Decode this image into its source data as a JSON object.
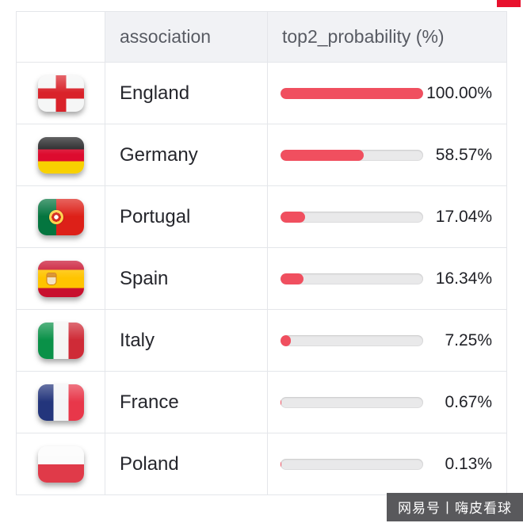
{
  "table": {
    "headers": {
      "flag": "",
      "association": "association",
      "probability": "top2_probability (%)"
    },
    "rows": [
      {
        "flag": "england-flag",
        "name": "England",
        "value": 100.0,
        "label": "100.00%"
      },
      {
        "flag": "germany-flag",
        "name": "Germany",
        "value": 58.57,
        "label": "58.57%"
      },
      {
        "flag": "portugal-flag",
        "name": "Portugal",
        "value": 17.04,
        "label": "17.04%"
      },
      {
        "flag": "spain-flag",
        "name": "Spain",
        "value": 16.34,
        "label": "16.34%"
      },
      {
        "flag": "italy-flag",
        "name": "Italy",
        "value": 7.25,
        "label": "7.25%"
      },
      {
        "flag": "france-flag",
        "name": "France",
        "value": 0.67,
        "label": "0.67%"
      },
      {
        "flag": "poland-flag",
        "name": "Poland",
        "value": 0.13,
        "label": "0.13%"
      }
    ]
  },
  "watermark": "网易号丨嗨皮看球",
  "colors": {
    "bar_fill": "#f04f5f",
    "bar_track": "#e9e9ea",
    "header_bg": "#f1f2f5"
  },
  "chart_data": {
    "type": "bar",
    "categories": [
      "England",
      "Germany",
      "Portugal",
      "Spain",
      "Italy",
      "France",
      "Poland"
    ],
    "values": [
      100.0,
      58.57,
      17.04,
      16.34,
      7.25,
      0.67,
      0.13
    ],
    "title": "",
    "xlabel": "association",
    "ylabel": "top2_probability (%)",
    "xlim": [
      0,
      100
    ],
    "legend": false,
    "grid": false
  }
}
